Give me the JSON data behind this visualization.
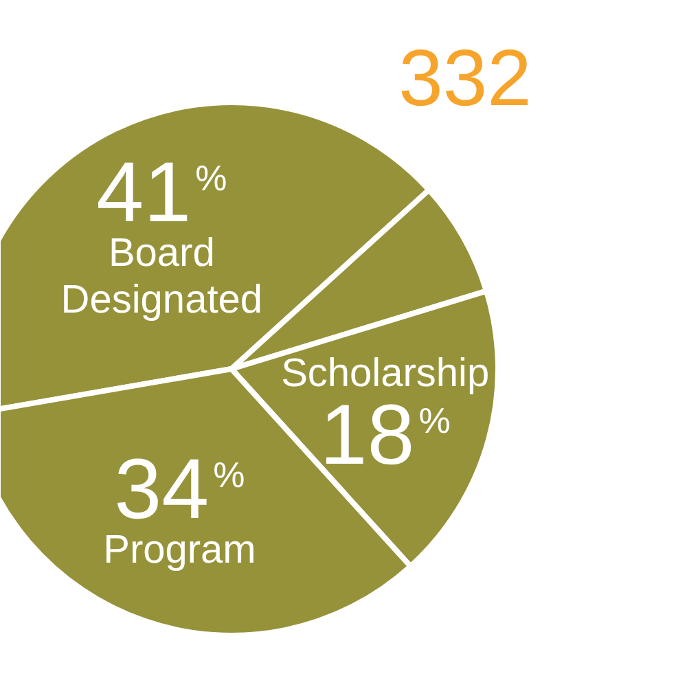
{
  "chart_data": {
    "type": "pie",
    "categories": [
      "Board Designated",
      null,
      "Scholarship",
      "Program"
    ],
    "values": [
      41,
      7,
      18,
      34
    ],
    "colors": [
      "#96923a",
      "#96923a",
      "#96923a",
      "#96923a"
    ],
    "value_labels": [
      "41%",
      null,
      "18%",
      "34%"
    ],
    "annotations": [
      "332"
    ]
  }
}
